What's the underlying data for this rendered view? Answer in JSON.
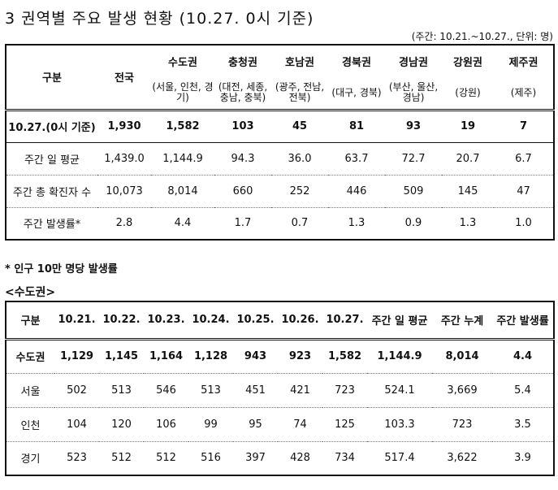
{
  "title": "3 권역별 주요 발생 현황 (10.27. 0시 기준)",
  "unit_note": "(주간: 10.21.~10.27., 단위: 명)",
  "table1": {
    "corner": "구분",
    "national": "전국",
    "regions": [
      {
        "name": "수도권",
        "sub": "(서울, 인천, 경기)"
      },
      {
        "name": "충청권",
        "sub": "(대전, 세종, 충남, 충북)"
      },
      {
        "name": "호남권",
        "sub": "(광주, 전남, 전북)"
      },
      {
        "name": "경북권",
        "sub": "(대구, 경북)"
      },
      {
        "name": "경남권",
        "sub": "(부산, 울산, 경남)"
      },
      {
        "name": "강원권",
        "sub": "(강원)"
      },
      {
        "name": "제주권",
        "sub": "(제주)"
      }
    ],
    "rows": [
      {
        "label": "10.27.(0시 기준)",
        "values": [
          "1,930",
          "1,582",
          "103",
          "45",
          "81",
          "93",
          "19",
          "7"
        ]
      },
      {
        "label": "주간 일 평균",
        "values": [
          "1,439.0",
          "1,144.9",
          "94.3",
          "36.0",
          "63.7",
          "72.7",
          "20.7",
          "6.7"
        ]
      },
      {
        "label": "주간 총 확진자 수",
        "values": [
          "10,073",
          "8,014",
          "660",
          "252",
          "446",
          "509",
          "145",
          "47"
        ]
      },
      {
        "label": "주간 발생률*",
        "values": [
          "2.8",
          "4.4",
          "1.7",
          "0.7",
          "1.3",
          "0.9",
          "1.3",
          "1.0"
        ]
      }
    ]
  },
  "footnote": "* 인구 10만 명당 발생률",
  "section_title": "<수도권>",
  "table2": {
    "headers": [
      "구분",
      "10.21.",
      "10.22.",
      "10.23.",
      "10.24.",
      "10.25.",
      "10.26.",
      "10.27.",
      "주간 일 평균",
      "주간 누계",
      "주간 발생률"
    ],
    "rows": [
      {
        "label": "수도권",
        "values": [
          "1,129",
          "1,145",
          "1,164",
          "1,128",
          "943",
          "923",
          "1,582",
          "1,144.9",
          "8,014",
          "4.4"
        ]
      },
      {
        "label": "서울",
        "values": [
          "502",
          "513",
          "546",
          "513",
          "451",
          "421",
          "723",
          "524.1",
          "3,669",
          "5.4"
        ]
      },
      {
        "label": "인천",
        "values": [
          "104",
          "120",
          "106",
          "99",
          "95",
          "74",
          "125",
          "103.3",
          "723",
          "3.5"
        ]
      },
      {
        "label": "경기",
        "values": [
          "523",
          "512",
          "512",
          "516",
          "397",
          "428",
          "734",
          "517.4",
          "3,622",
          "3.9"
        ]
      }
    ]
  }
}
